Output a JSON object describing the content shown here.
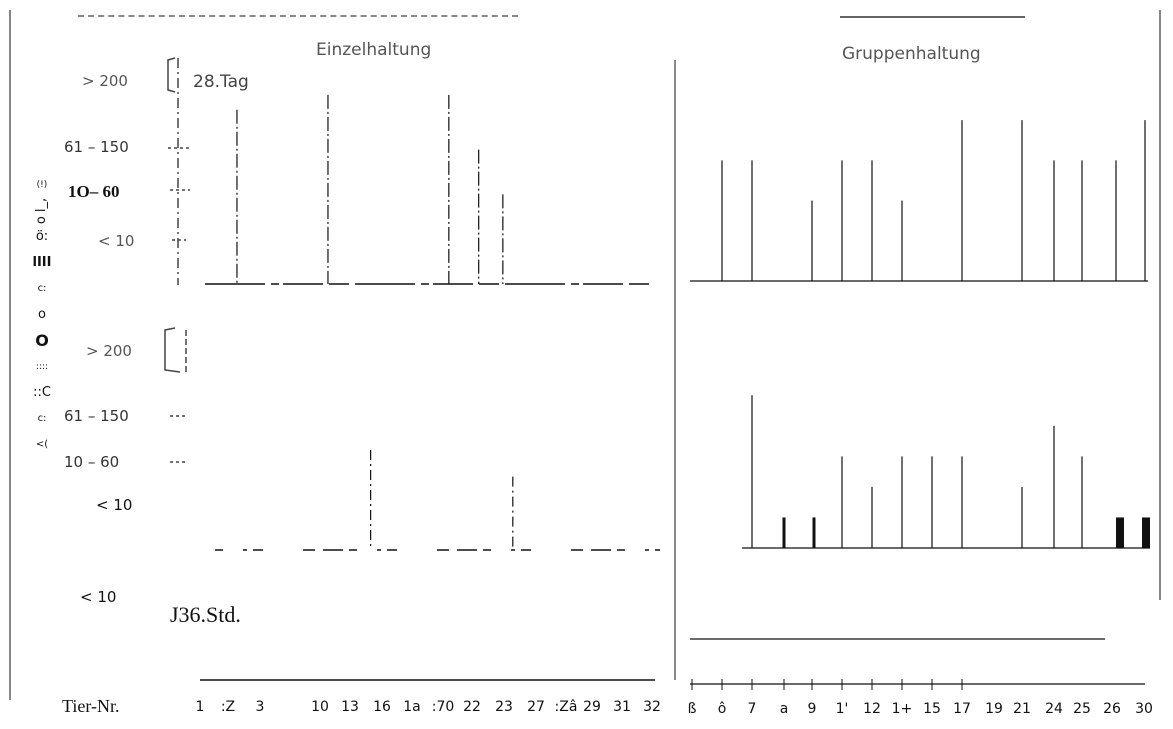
{
  "chart_data": [
    {
      "type": "bar",
      "panel": "Einzelhaltung",
      "title": "Einzelhaltung",
      "annotation": "28.Tag",
      "ylabel_categories": [
        "< 10",
        "10 - 60",
        "61 - 150",
        "> 200"
      ],
      "y_axis_tick_labels": [
        "61 – 150",
        "1O– 60",
        "< 10"
      ],
      "extra_label": "> 200",
      "bars": [
        {
          "x": 3.6,
          "value": 3.5
        },
        {
          "x": 10,
          "value": 3.8
        },
        {
          "x": 18.5,
          "value": 3.8
        },
        {
          "x": 20.6,
          "value": 2.7
        },
        {
          "x": 22.3,
          "value": 1.8
        }
      ],
      "ylim": [
        0,
        4.5
      ]
    },
    {
      "type": "bar",
      "panel": "Gruppenhaltung",
      "title": "Gruppenhaltung",
      "bars": [
        {
          "x": 5,
          "value": 3
        },
        {
          "x": 6,
          "value": 3
        },
        {
          "x": 7,
          "value": 2
        },
        {
          "x": 8,
          "value": 3
        },
        {
          "x": 9,
          "value": 3
        },
        {
          "x": 10,
          "value": 2
        },
        {
          "x": 11,
          "value": 4
        },
        {
          "x": 12,
          "value": 4
        },
        {
          "x": 13,
          "value": 3
        },
        {
          "x": 14,
          "value": 3
        },
        {
          "x": 15,
          "value": 3
        },
        {
          "x": 16,
          "value": 4
        }
      ],
      "ylim": [
        0,
        4.5
      ]
    },
    {
      "type": "bar",
      "panel": "Einzelhaltung",
      "annotation": "J36.Std.",
      "y_axis_tick_labels": [
        "> 200",
        "61 – 150",
        "10 – 60",
        "< 10"
      ],
      "bars": [
        {
          "x": 13,
          "value": 3.0
        },
        {
          "x": 23,
          "value": 2.2
        }
      ],
      "ylim": [
        0,
        4.5
      ]
    },
    {
      "type": "bar",
      "panel": "Gruppenhaltung",
      "bars": [
        {
          "x": 7,
          "value": 5
        },
        {
          "x": 8,
          "value": 1
        },
        {
          "x": 9,
          "value": 1
        },
        {
          "x": 11,
          "value": 3
        },
        {
          "x": 12,
          "value": 2
        },
        {
          "x": 14,
          "value": 3
        },
        {
          "x": 15,
          "value": 3
        },
        {
          "x": 17,
          "value": 3
        },
        {
          "x": 21,
          "value": 2
        },
        {
          "x": 24,
          "value": 4
        },
        {
          "x": 25,
          "value": 3
        },
        {
          "x": 26,
          "value": 1
        },
        {
          "x": 30,
          "value": 1
        }
      ],
      "ylim": [
        0,
        5.5
      ]
    }
  ],
  "labels": {
    "left_title": "Einzelhaltung",
    "right_title": "Gruppenhaltung",
    "day28": "28.Tag",
    "hours36": "J36.Std.",
    "gt200_top": "> 200",
    "r61_150_top": "61 – 150",
    "r10_60_top": "1O– 60",
    "lt10_top": "< 10",
    "gt200_bottom": "> 200",
    "r61_150_bottom": "61 – 150",
    "r10_60_bottom": "10 – 60",
    "lt10_bottom": "< 10",
    "lt10_extra": "< 10",
    "tier_nr": "Tier-Nr.",
    "left_ticks": [
      "1",
      ":Z",
      "3",
      "10",
      "13",
      "16",
      "1a",
      ":70",
      "22",
      "23",
      "27",
      ":Zâ",
      "29",
      "31",
      "32"
    ],
    "right_ticks": [
      "ß",
      "ô",
      "7",
      "a",
      "9",
      "1'",
      "12",
      "1+",
      "15",
      "17",
      "19",
      "21",
      "24",
      "25",
      "26",
      "30"
    ],
    "vertical_glyphs": [
      "(!)",
      "o l_,",
      "ö:",
      "lIII",
      "c:",
      "o",
      "O",
      "::::",
      "::C",
      "c:",
      "<("
    ]
  },
  "colors": {
    "ink": "#111111",
    "faint": "#777777"
  }
}
